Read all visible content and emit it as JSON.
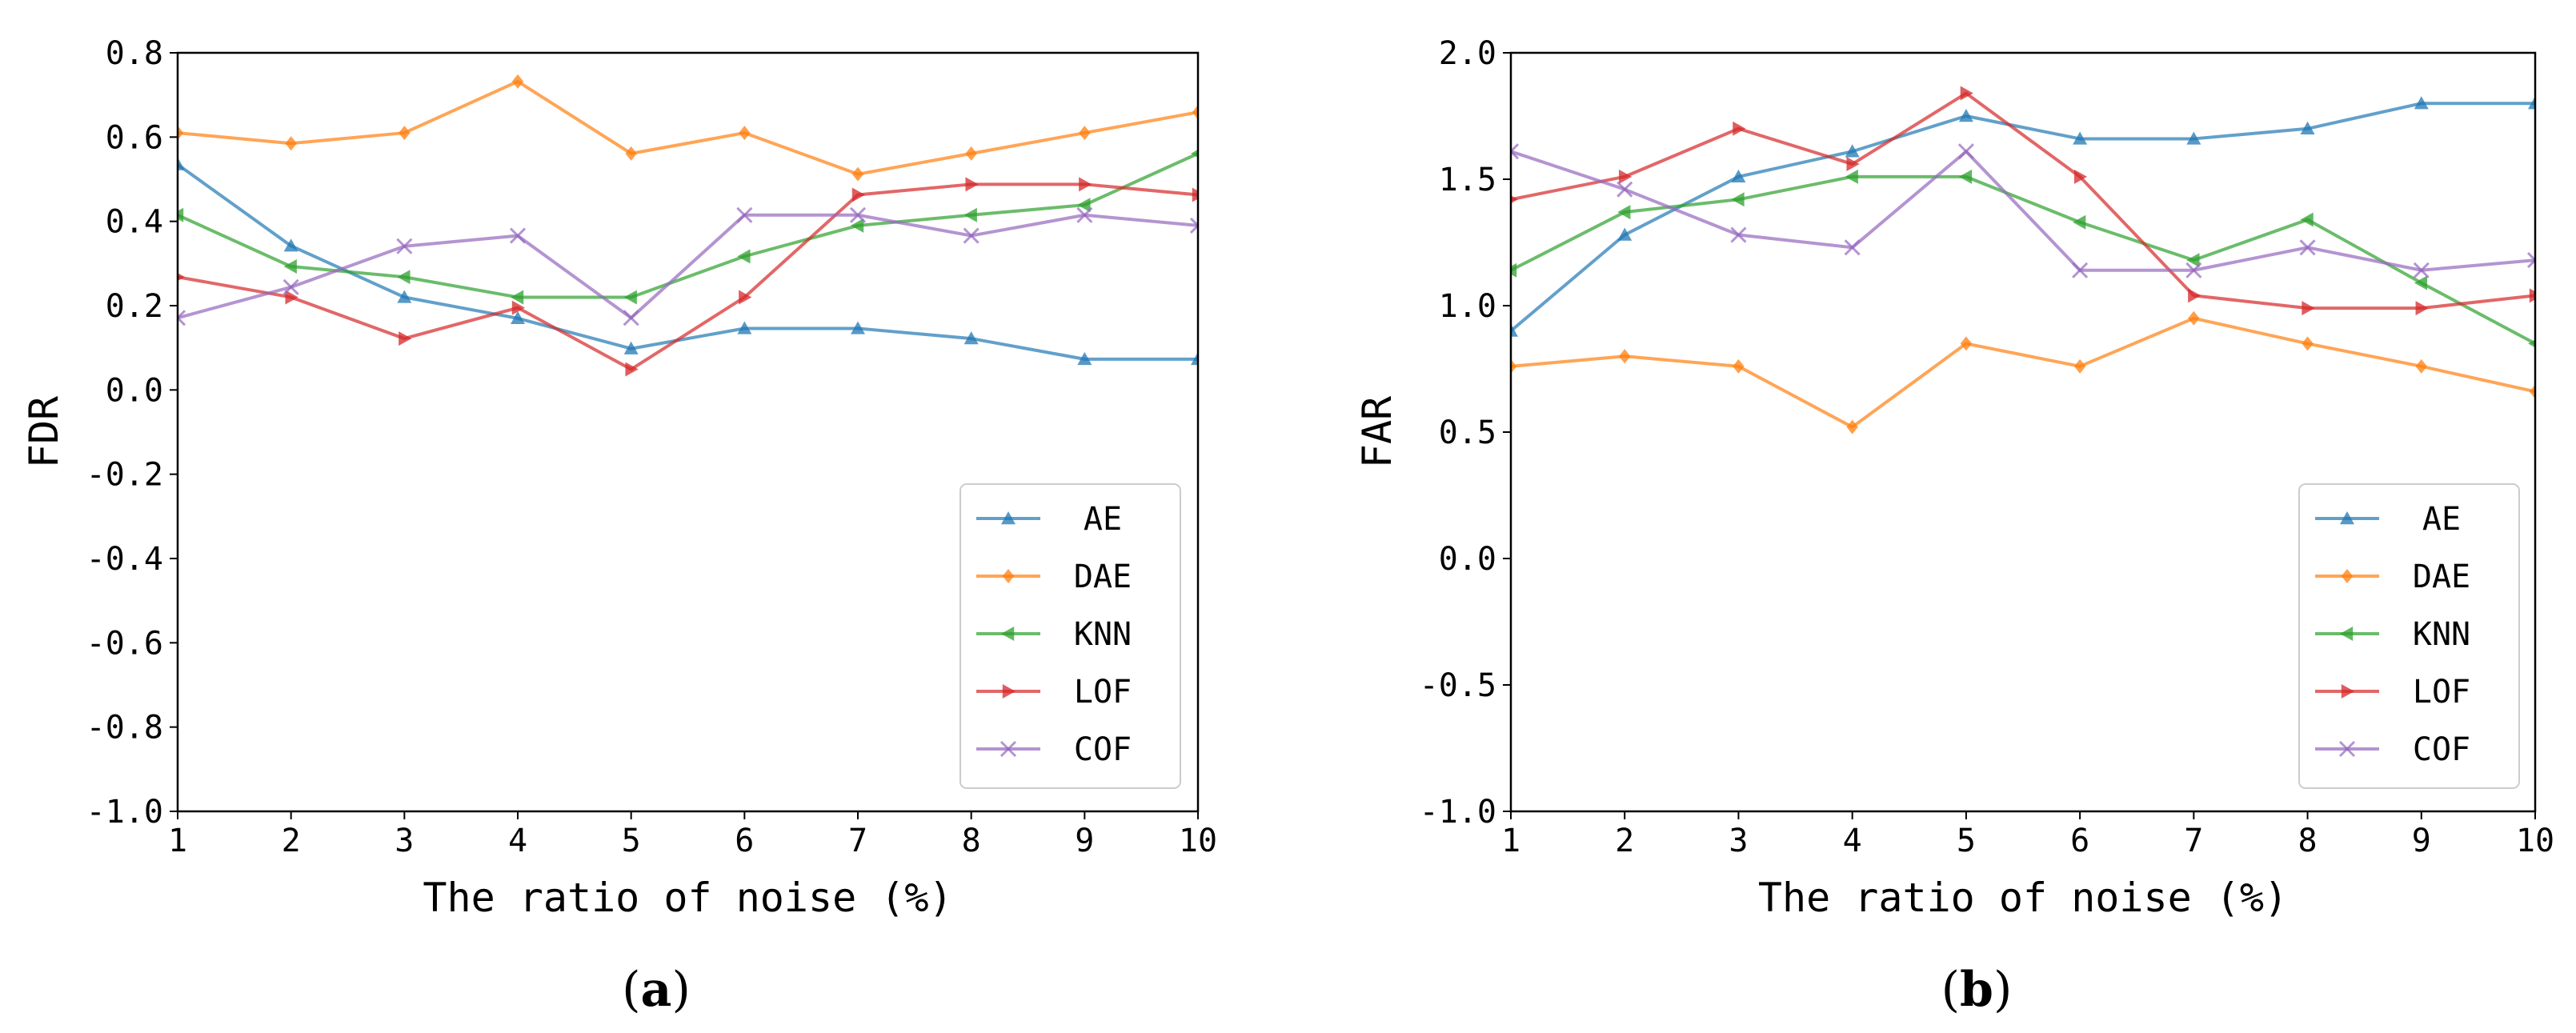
{
  "chart_data": [
    {
      "type": "line",
      "panel_label": "(a)",
      "xlabel": "The ratio of noise (%)",
      "ylabel": "FDR",
      "xlim": [
        1,
        10
      ],
      "ylim": [
        -1.0,
        0.8
      ],
      "x": [
        1,
        2,
        3,
        4,
        5,
        6,
        7,
        8,
        9,
        10
      ],
      "x_ticks": [
        "1",
        "2",
        "3",
        "4",
        "5",
        "6",
        "7",
        "8",
        "9",
        "10"
      ],
      "y_ticks": [
        "-1.0",
        "-0.8",
        "-0.6",
        "-0.4",
        "-0.2",
        "0.0",
        "0.2",
        "0.4",
        "0.6",
        "0.8"
      ],
      "y_tick_values": [
        -1.0,
        -0.8,
        -0.6,
        -0.4,
        -0.2,
        0.0,
        0.2,
        0.4,
        0.6,
        0.8
      ],
      "legend_position": "lower-right",
      "series": [
        {
          "name": "AE",
          "color": "#1f77b4",
          "marker": "triangle-up",
          "values": [
            0.535,
            0.342,
            0.22,
            0.17,
            0.098,
            0.146,
            0.146,
            0.122,
            0.073,
            0.073
          ]
        },
        {
          "name": "DAE",
          "color": "#ff7f0e",
          "marker": "diamond",
          "values": [
            0.61,
            0.585,
            0.61,
            0.732,
            0.561,
            0.61,
            0.512,
            0.561,
            0.61,
            0.659
          ]
        },
        {
          "name": "KNN",
          "color": "#2ca02c",
          "marker": "triangle-left",
          "values": [
            0.415,
            0.293,
            0.268,
            0.22,
            0.22,
            0.317,
            0.39,
            0.415,
            0.439,
            0.561
          ]
        },
        {
          "name": "LOF",
          "color": "#d62728",
          "marker": "triangle-right",
          "values": [
            0.268,
            0.22,
            0.122,
            0.195,
            0.049,
            0.22,
            0.463,
            0.488,
            0.488,
            0.463
          ]
        },
        {
          "name": "COF",
          "color": "#9467bd",
          "marker": "x",
          "values": [
            0.171,
            0.244,
            0.341,
            0.366,
            0.171,
            0.415,
            0.415,
            0.366,
            0.415,
            0.39
          ]
        }
      ]
    },
    {
      "type": "line",
      "panel_label": "(b)",
      "xlabel": "The ratio of noise (%)",
      "ylabel": "FAR",
      "xlim": [
        1,
        10
      ],
      "ylim": [
        -1.0,
        2.0
      ],
      "x": [
        1,
        2,
        3,
        4,
        5,
        6,
        7,
        8,
        9,
        10
      ],
      "x_ticks": [
        "1",
        "2",
        "3",
        "4",
        "5",
        "6",
        "7",
        "8",
        "9",
        "10"
      ],
      "y_ticks": [
        "-1.0",
        "-0.5",
        "0.0",
        "0.5",
        "1.0",
        "1.5",
        "2.0"
      ],
      "y_tick_values": [
        -1.0,
        -0.5,
        0.0,
        0.5,
        1.0,
        1.5,
        2.0
      ],
      "legend_position": "lower-right",
      "series": [
        {
          "name": "AE",
          "color": "#1f77b4",
          "marker": "triangle-up",
          "values": [
            0.9,
            1.28,
            1.51,
            1.61,
            1.75,
            1.66,
            1.66,
            1.7,
            1.8,
            1.8
          ]
        },
        {
          "name": "DAE",
          "color": "#ff7f0e",
          "marker": "diamond",
          "values": [
            0.76,
            0.8,
            0.76,
            0.52,
            0.85,
            0.76,
            0.95,
            0.85,
            0.76,
            0.66
          ]
        },
        {
          "name": "KNN",
          "color": "#2ca02c",
          "marker": "triangle-left",
          "values": [
            1.14,
            1.37,
            1.42,
            1.51,
            1.51,
            1.33,
            1.18,
            1.34,
            1.09,
            0.85
          ]
        },
        {
          "name": "LOF",
          "color": "#d62728",
          "marker": "triangle-right",
          "values": [
            1.42,
            1.51,
            1.7,
            1.56,
            1.84,
            1.51,
            1.04,
            0.99,
            0.99,
            1.04
          ]
        },
        {
          "name": "COF",
          "color": "#9467bd",
          "marker": "x",
          "values": [
            1.61,
            1.46,
            1.28,
            1.23,
            1.61,
            1.14,
            1.14,
            1.23,
            1.14,
            1.18
          ]
        }
      ]
    }
  ]
}
